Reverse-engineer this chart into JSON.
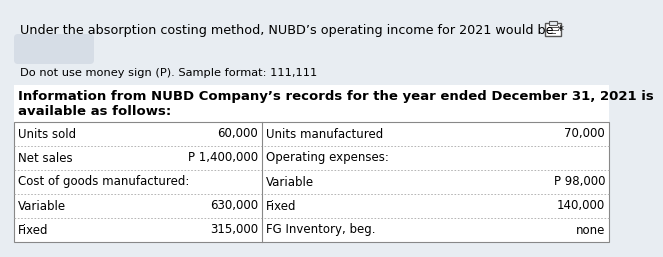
{
  "title_line": "Under the absorption costing method, NUBD’s operating income for 2021 would be *",
  "subtitle": "Do not use money sign (P). Sample format: 111,111",
  "info_heading1": "Information from NUBD Company’s records for the year ended December 31, 2021 is",
  "info_heading2": "available as follows:",
  "table": {
    "col1_labels": [
      "Units sold",
      "Net sales",
      "Cost of goods manufactured:",
      "Variable",
      "Fixed"
    ],
    "col2_values": [
      "60,000",
      "P 1,400,000",
      "",
      "630,000",
      "315,000"
    ],
    "col3_labels": [
      "Units manufactured",
      "Operating expenses:",
      "Variable",
      "Fixed",
      "FG Inventory, beg."
    ],
    "col4_values": [
      "70,000",
      "",
      "P 98,000",
      "140,000",
      "none"
    ]
  },
  "bg_color": "#e8edf2",
  "table_bg": "#ffffff",
  "text_color": "#000000",
  "title_fontsize": 9.2,
  "subtitle_fontsize": 8.2,
  "heading_fontsize": 9.5,
  "table_fontsize": 8.5,
  "answer_box_color": "#d6dde6",
  "icon_color": "#555555"
}
